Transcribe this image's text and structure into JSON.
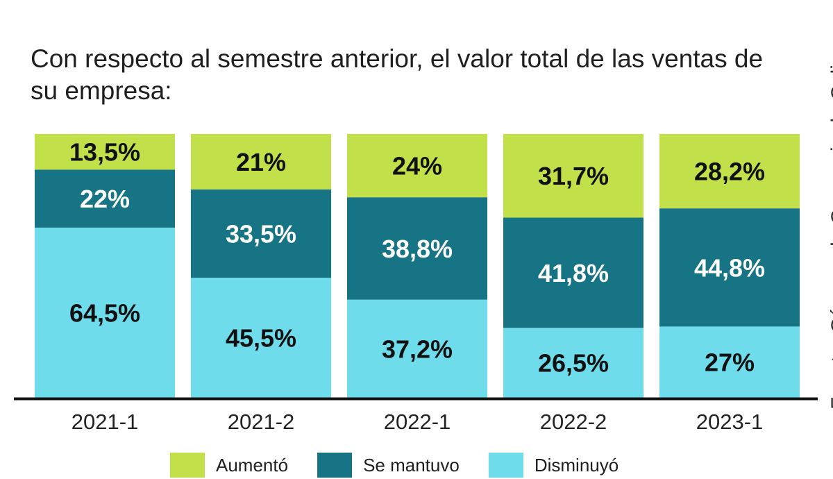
{
  "title": "Con respecto al semestre anterior, el valor total de las ventas de su empresa:",
  "source": "Fuente: Cámara de Comercio de Cali",
  "colors": {
    "aumento": "#c1e04a",
    "se_mantuvo": "#167484",
    "disminuyo": "#6fdcec",
    "axis": "#111111"
  },
  "chart_data": {
    "type": "bar",
    "stacked": true,
    "categories": [
      "2021-1",
      "2021-2",
      "2022-1",
      "2022-2",
      "2023-1"
    ],
    "series": [
      {
        "name": "Disminuyó",
        "values": [
          64.5,
          45.5,
          37.2,
          26.5,
          27
        ],
        "labels": [
          "64,5%",
          "45,5%",
          "37,2%",
          "26,5%",
          "27%"
        ]
      },
      {
        "name": "Se mantuvo",
        "values": [
          22,
          33.5,
          38.8,
          41.8,
          44.8
        ],
        "labels": [
          "22%",
          "33,5%",
          "38,8%",
          "41,8%",
          "44,8%"
        ]
      },
      {
        "name": "Aumentó",
        "values": [
          13.5,
          21,
          24,
          31.7,
          28.2
        ],
        "labels": [
          "13,5%",
          "21%",
          "24%",
          "31,7%",
          "28,2%"
        ]
      }
    ],
    "ylim": [
      0,
      100
    ],
    "grid": false,
    "legend_position": "bottom"
  },
  "legend": [
    {
      "label": "Aumentó",
      "color_key": "aumento"
    },
    {
      "label": "Se mantuvo",
      "color_key": "se_mantuvo"
    },
    {
      "label": "Disminuyó",
      "color_key": "disminuyo"
    }
  ]
}
